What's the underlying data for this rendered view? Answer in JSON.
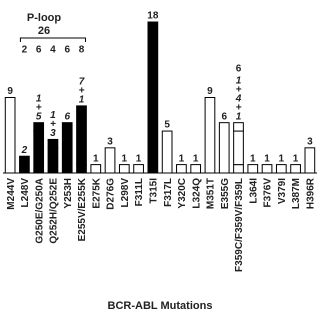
{
  "chart_data": {
    "type": "bar",
    "xlabel": "BCR-ABL Mutations",
    "categories": [
      "M244V",
      "L248V",
      "G250E/G250A",
      "Q252H/Q252E",
      "Y253H",
      "E255V/E255K",
      "E275K",
      "D276G",
      "L298V",
      "F311L",
      "T315I",
      "F317L",
      "Y320C",
      "L324Q",
      "M351T",
      "E355G",
      "F359C/F359V/F359L",
      "L364I",
      "F376V",
      "V379I",
      "L387M",
      "H396R"
    ],
    "series": [
      {
        "values": [
          9,
          2,
          5,
          3,
          6,
          1,
          1,
          3,
          1,
          1,
          18,
          5,
          1,
          1,
          9,
          6,
          1,
          1,
          1,
          1,
          1,
          3
        ]
      },
      {
        "values": [
          null,
          null,
          1,
          1,
          null,
          7,
          null,
          null,
          null,
          null,
          null,
          null,
          null,
          null,
          null,
          null,
          4,
          null,
          null,
          null,
          null,
          null
        ]
      },
      {
        "values": [
          null,
          null,
          null,
          null,
          null,
          null,
          null,
          null,
          null,
          null,
          null,
          null,
          null,
          null,
          null,
          null,
          1,
          null,
          null,
          null,
          null,
          null
        ]
      }
    ],
    "fills": [
      "#ffffff",
      "#000000",
      "#000000",
      "#000000",
      "#000000",
      "#000000",
      "#ffffff",
      "#ffffff",
      "#ffffff",
      "#ffffff",
      "#000000",
      "#ffffff",
      "#ffffff",
      "#ffffff",
      "#ffffff",
      "#ffffff",
      "#ffffff",
      "#ffffff",
      "#ffffff",
      "#ffffff",
      "#ffffff",
      "#ffffff"
    ],
    "bar_labels": [
      9,
      null,
      null,
      null,
      null,
      null,
      1,
      3,
      1,
      1,
      18,
      5,
      1,
      1,
      9,
      6,
      6,
      1,
      1,
      1,
      1,
      3
    ],
    "stack_labels": [
      null,
      [
        "2"
      ],
      [
        "1",
        "+",
        "5"
      ],
      [
        "1",
        "+",
        "3"
      ],
      [
        "6"
      ],
      [
        "7",
        "+",
        "1"
      ],
      null,
      null,
      null,
      null,
      null,
      null,
      null,
      null,
      null,
      null,
      [
        "1",
        "+",
        "4",
        "+",
        "1"
      ],
      null,
      null,
      null,
      null,
      null
    ],
    "p_loop": {
      "label": "P-loop",
      "total": 26,
      "counts": [
        2,
        6,
        4,
        6,
        8
      ]
    },
    "ylim": [
      0,
      18
    ]
  }
}
